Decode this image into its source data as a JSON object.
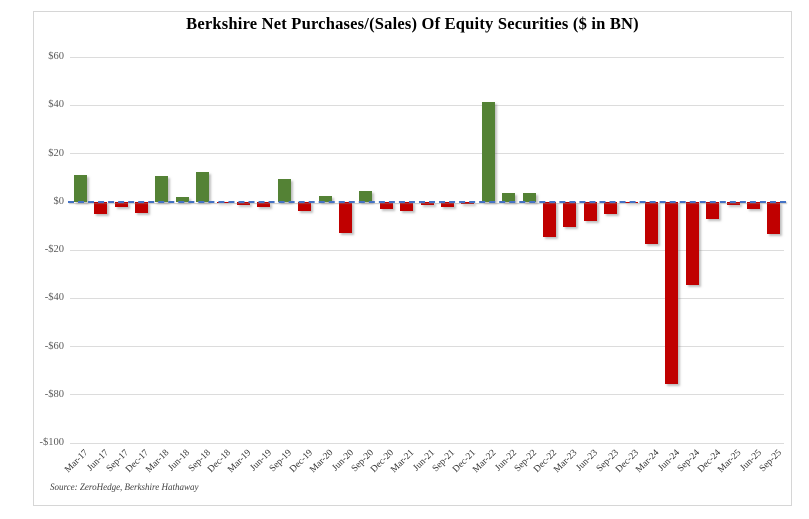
{
  "chart_data": {
    "type": "bar",
    "title": "Berkshire Net Purchases/(Sales) Of Equity Securities ($ in BN)",
    "source_note": "Source: ZeroHedge, Berkshire Hathaway",
    "xlabel": "",
    "ylabel": "",
    "ylim": [
      -100,
      60
    ],
    "grid": true,
    "legend_position": "none",
    "unit": "$ in BN",
    "categories": [
      "Mar-17",
      "Jun-17",
      "Sep-17",
      "Dec-17",
      "Mar-18",
      "Jun-18",
      "Sep-18",
      "Dec-18",
      "Mar-19",
      "Jun-19",
      "Sep-19",
      "Dec-19",
      "Mar-20",
      "Jun-20",
      "Sep-20",
      "Dec-20",
      "Mar-21",
      "Jun-21",
      "Sep-21",
      "Dec-21",
      "Mar-22",
      "Jun-22",
      "Sep-22",
      "Dec-22",
      "Mar-23",
      "Jun-23",
      "Sep-23",
      "Dec-23",
      "Mar-24",
      "Jun-24",
      "Sep-24",
      "Dec-24",
      "Mar-25",
      "Jun-25",
      "Sep-25"
    ],
    "values": [
      11,
      -5,
      -2,
      -4.5,
      10.5,
      2,
      12.5,
      -0.5,
      -1.5,
      -2,
      9.5,
      -4,
      2.5,
      -13,
      4.5,
      -3,
      -4,
      -1.5,
      -2,
      -1,
      41.5,
      3.8,
      3.7,
      -14.5,
      -10.5,
      -8,
      -5,
      -0.5,
      -17.5,
      -75.5,
      -34.5,
      -7,
      -1.5,
      -3,
      -13.5
    ],
    "y_ticks": [
      {
        "value": 60,
        "label": "$60"
      },
      {
        "value": 40,
        "label": "$40"
      },
      {
        "value": 20,
        "label": "$20"
      },
      {
        "value": 0,
        "label": "$0"
      },
      {
        "value": -20,
        "label": "-$20"
      },
      {
        "value": -40,
        "label": "-$40"
      },
      {
        "value": -60,
        "label": "-$60"
      },
      {
        "value": -80,
        "label": "-$80"
      },
      {
        "value": -100,
        "label": "-$100"
      }
    ],
    "colors": {
      "positive_bar": "#548235",
      "negative_bar": "#c00000",
      "zero_line": "#4472c4",
      "gridline": "#dcdcdc",
      "axis_label": "#595959",
      "title": "#000000",
      "background": "#ffffff"
    }
  }
}
